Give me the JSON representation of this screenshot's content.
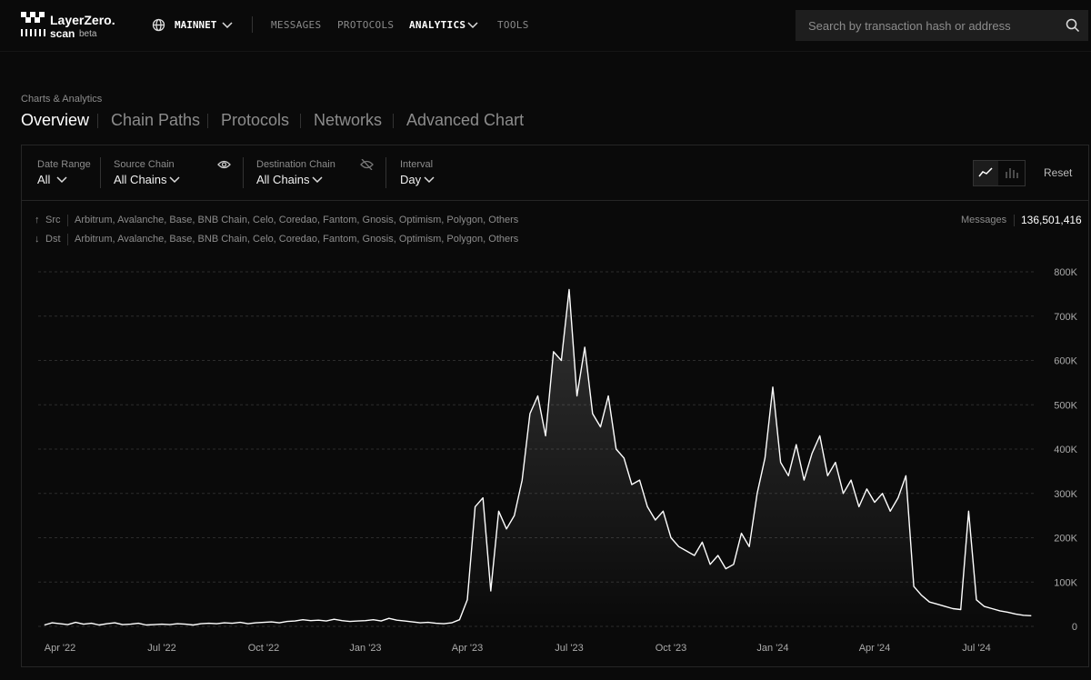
{
  "header": {
    "logo": "LayerZero.",
    "logo_sub": "scan",
    "logo_badge": "beta",
    "network": "MAINNET",
    "nav": [
      "MESSAGES",
      "PROTOCOLS",
      "ANALYTICS",
      "TOOLS"
    ],
    "search_placeholder": "Search by transaction hash or address"
  },
  "breadcrumb": "Charts & Analytics",
  "tabs": [
    "Overview",
    "Chain Paths",
    "Protocols",
    "Networks",
    "Advanced Chart"
  ],
  "filters": [
    {
      "label": "Date Range",
      "value": "All"
    },
    {
      "label": "Source Chain",
      "value": "All Chains"
    },
    {
      "label": "Destination Chain",
      "value": "All Chains"
    },
    {
      "label": "Interval",
      "value": "Day"
    }
  ],
  "reset": "Reset",
  "legend": {
    "src_label": "Src",
    "src_chains": "Arbitrum, Avalanche, Base, BNB Chain, Celo, Coredao, Fantom, Gnosis, Optimism, Polygon, Others",
    "dst_label": "Dst",
    "dst_chains": "Arbitrum, Avalanche, Base, BNB Chain, Celo, Coredao, Fantom, Gnosis, Optimism, Polygon, Others",
    "messages_label": "Messages",
    "messages_value": "136,501,416"
  },
  "chart_data": {
    "type": "area",
    "color": "#ffffff",
    "grid": true,
    "categories": [
      null,
      null,
      "Apr '22",
      null,
      null,
      null,
      null,
      null,
      null,
      null,
      null,
      null,
      null,
      null,
      null,
      "Jul '22",
      null,
      null,
      null,
      null,
      null,
      null,
      null,
      null,
      null,
      null,
      null,
      null,
      "Oct '22",
      null,
      null,
      null,
      null,
      null,
      null,
      null,
      null,
      null,
      null,
      null,
      null,
      "Jan '23",
      null,
      null,
      null,
      null,
      null,
      null,
      null,
      null,
      null,
      null,
      null,
      null,
      "Apr '23",
      null,
      null,
      null,
      null,
      null,
      null,
      null,
      null,
      null,
      null,
      null,
      null,
      "Jul '23",
      null,
      null,
      null,
      null,
      null,
      null,
      null,
      null,
      null,
      null,
      null,
      null,
      "Oct '23",
      null,
      null,
      null,
      null,
      null,
      null,
      null,
      null,
      null,
      null,
      null,
      null,
      "Jan '24",
      null,
      null,
      null,
      null,
      null,
      null,
      null,
      null,
      null,
      null,
      null,
      null,
      "Apr '24",
      null,
      null,
      null,
      null,
      null,
      null,
      null,
      null,
      null,
      null,
      null,
      null,
      "Jul '24",
      null,
      null,
      null,
      null,
      null,
      null,
      null
    ],
    "values": [
      3000,
      8000,
      6000,
      4000,
      9000,
      5000,
      7000,
      3000,
      6000,
      8000,
      4000,
      5000,
      7000,
      3000,
      4000,
      5000,
      4000,
      6000,
      5000,
      3000,
      6000,
      7000,
      6000,
      8000,
      7000,
      9000,
      6000,
      8000,
      9000,
      10000,
      8000,
      11000,
      12000,
      15000,
      13000,
      14000,
      12000,
      16000,
      13000,
      11000,
      12000,
      13000,
      15000,
      12000,
      18000,
      14000,
      12000,
      10000,
      8000,
      9000,
      7000,
      6000,
      8000,
      15000,
      60000,
      270000,
      290000,
      80000,
      260000,
      220000,
      250000,
      330000,
      480000,
      520000,
      430000,
      620000,
      600000,
      760000,
      520000,
      630000,
      480000,
      450000,
      520000,
      400000,
      380000,
      320000,
      330000,
      270000,
      240000,
      260000,
      200000,
      180000,
      170000,
      160000,
      190000,
      140000,
      160000,
      130000,
      140000,
      210000,
      180000,
      300000,
      380000,
      540000,
      370000,
      340000,
      410000,
      330000,
      390000,
      430000,
      340000,
      370000,
      300000,
      330000,
      270000,
      310000,
      280000,
      300000,
      260000,
      290000,
      340000,
      90000,
      70000,
      55000,
      50000,
      45000,
      40000,
      38000,
      260000,
      60000,
      45000,
      40000,
      35000,
      32000,
      28000,
      25000,
      24000
    ],
    "ylim": [
      0,
      800000
    ],
    "yticks": [
      0,
      {
        "value": 100000,
        "label": "100K"
      },
      {
        "value": 200000,
        "label": "200K"
      },
      {
        "value": 300000,
        "label": "300K"
      },
      {
        "value": 400000,
        "label": "400K"
      },
      {
        "value": 500000,
        "label": "500K"
      },
      {
        "value": 600000,
        "label": "600K"
      },
      {
        "value": 700000,
        "label": "700K"
      },
      {
        "value": 800000,
        "label": "800K"
      }
    ]
  }
}
